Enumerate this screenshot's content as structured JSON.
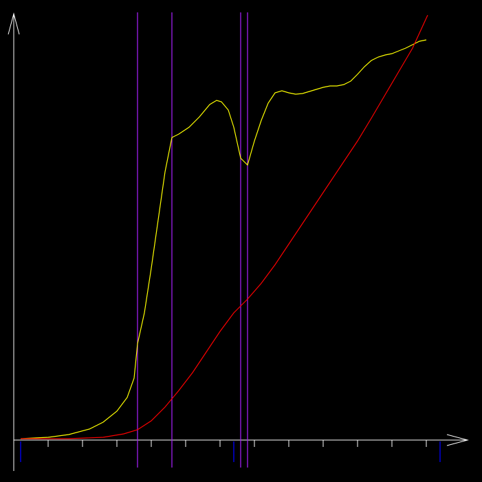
{
  "chart_data": {
    "type": "line",
    "xlim": [
      0,
      660
    ],
    "ylim": [
      0,
      620
    ],
    "xticks": [
      50,
      100,
      150,
      200,
      250,
      300,
      350,
      400,
      450,
      500,
      550,
      600
    ],
    "axis_color": "#ffffff",
    "series": [
      {
        "color": "#ffff00",
        "x": [
          10,
          50,
          80,
          110,
          130,
          150,
          165,
          175,
          180,
          190,
          200,
          210,
          220,
          230,
          240,
          255,
          270,
          285,
          295,
          302,
          312,
          320,
          330,
          340,
          350,
          360,
          370,
          380,
          390,
          400,
          410,
          420,
          430,
          440,
          450,
          460,
          470,
          480,
          490,
          500,
          510,
          520,
          530,
          540,
          550,
          560,
          570,
          580,
          590,
          600
        ],
        "values": [
          2,
          4,
          8,
          16,
          26,
          42,
          62,
          90,
          140,
          185,
          250,
          320,
          390,
          440,
          445,
          455,
          470,
          488,
          494,
          492,
          480,
          455,
          410,
          400,
          435,
          465,
          490,
          505,
          508,
          505,
          503,
          504,
          507,
          510,
          513,
          515,
          515,
          517,
          522,
          532,
          543,
          552,
          557,
          560,
          562,
          566,
          570,
          575,
          580,
          582
        ]
      },
      {
        "color": "#ff0000",
        "x": [
          10,
          80,
          130,
          160,
          180,
          200,
          220,
          240,
          260,
          280,
          300,
          320,
          340,
          360,
          380,
          400,
          420,
          440,
          460,
          480,
          500,
          520,
          540,
          560,
          580,
          602
        ],
        "values": [
          2,
          2,
          4,
          9,
          15,
          28,
          48,
          72,
          98,
          128,
          158,
          185,
          205,
          228,
          255,
          285,
          315,
          345,
          375,
          405,
          435,
          468,
          502,
          536,
          570,
          618
        ]
      }
    ],
    "vlines": {
      "color": "#a020f0",
      "x": [
        180,
        230,
        330,
        340
      ]
    },
    "markers": {
      "color": "#0000ff",
      "x": [
        10,
        320,
        620
      ]
    }
  }
}
